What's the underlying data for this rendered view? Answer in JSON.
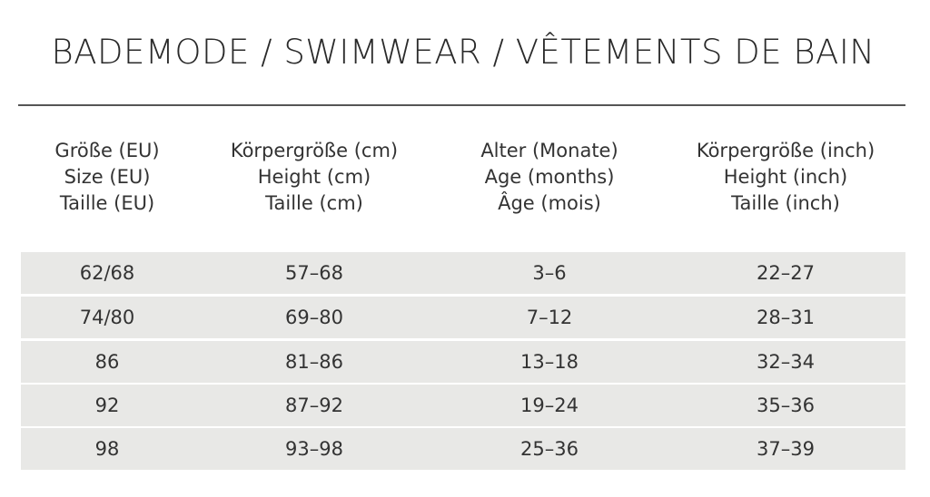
{
  "title": "BADEMODE / SWIMWEAR / VÊTEMENTS DE BAIN",
  "headers": [
    [
      "Größe (EU)",
      "Size (EU)",
      "Taille (EU)"
    ],
    [
      "Körpergröße (cm)",
      "Height (cm)",
      "Taille (cm)"
    ],
    [
      "Alter (Monate)",
      "Age (months)",
      "Âge (mois)"
    ],
    [
      "Körpergröße (inch)",
      "Height (inch)",
      "Taille (inch)"
    ]
  ],
  "rows": [
    [
      "62/68",
      "57–68",
      "3–6",
      "22–27"
    ],
    [
      "74/80",
      "69–80",
      "7–12",
      "28–31"
    ],
    [
      "86",
      "81–86",
      "13–18",
      "32–34"
    ],
    [
      "92",
      "87–92",
      "19–24",
      "35–36"
    ],
    [
      "98",
      "93–98",
      "25–36",
      "37–39"
    ]
  ],
  "colors": {
    "row_fill": "#e8e8e6",
    "rule": "#555555",
    "text": "#333333"
  }
}
